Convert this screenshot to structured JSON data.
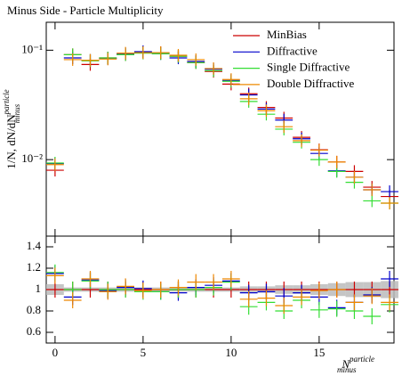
{
  "chart_data": {
    "type": "errorbar",
    "title": "Minus Side - Particle Multiplicity",
    "xlabel": {
      "text": "N",
      "sup": "particle",
      "sub": "minus"
    },
    "ylabel": {
      "text": "1/N, dN/dN",
      "sup": "particle",
      "sub": "minus"
    },
    "x": [
      0,
      1,
      2,
      3,
      4,
      5,
      6,
      7,
      8,
      9,
      10,
      11,
      12,
      13,
      14,
      15,
      16,
      17,
      18,
      19
    ],
    "xlim": [
      -0.5,
      19.25
    ],
    "xticks": [
      0,
      5,
      10,
      15
    ],
    "ylim": [
      0.002,
      0.18
    ],
    "log_y": true,
    "yticks": [
      {
        "value": 0.01,
        "label": "10⁻²"
      },
      {
        "value": 0.1,
        "label": "10⁻¹"
      }
    ],
    "legend": "top-right",
    "series": [
      {
        "name": "MinBias",
        "color": "#cc0000",
        "values": [
          0.008,
          0.091,
          0.074,
          0.085,
          0.091,
          0.096,
          0.095,
          0.088,
          0.077,
          0.064,
          0.049,
          0.04,
          0.03,
          0.024,
          0.016,
          0.0123,
          0.0095,
          0.0078,
          0.0056,
          0.0046
        ]
      },
      {
        "name": "Diffractive",
        "color": "#0000cc",
        "values": [
          0.0092,
          0.085,
          0.081,
          0.084,
          0.093,
          0.097,
          0.093,
          0.085,
          0.079,
          0.067,
          0.053,
          0.039,
          0.029,
          0.023,
          0.0155,
          0.0114,
          0.0079,
          0.0069,
          0.0053,
          0.0051
        ]
      },
      {
        "name": "Single Diffractive",
        "color": "#33dd33",
        "values": [
          0.0093,
          0.091,
          0.08,
          0.085,
          0.091,
          0.094,
          0.093,
          0.088,
          0.077,
          0.065,
          0.052,
          0.034,
          0.026,
          0.019,
          0.0144,
          0.01,
          0.0078,
          0.0062,
          0.0042,
          0.004
        ]
      },
      {
        "name": "Double Diffractive",
        "color": "#ee8800",
        "values": [
          0.009,
          0.082,
          0.081,
          0.083,
          0.094,
          0.095,
          0.095,
          0.09,
          0.082,
          0.068,
          0.054,
          0.036,
          0.028,
          0.02,
          0.0149,
          0.0122,
          0.0095,
          0.0069,
          0.0053,
          0.004
        ]
      }
    ],
    "ratio": {
      "ylim": [
        0.5,
        1.5
      ],
      "yticks": [
        0.6,
        0.8,
        1,
        1.2,
        1.4
      ],
      "band": [
        0.05,
        0.02,
        0.02,
        0.02,
        0.02,
        0.02,
        0.02,
        0.02,
        0.02,
        0.02,
        0.02,
        0.03,
        0.03,
        0.04,
        0.04,
        0.05,
        0.06,
        0.07,
        0.07,
        0.08
      ],
      "series": [
        {
          "values": [
            1,
            1,
            1,
            1,
            1,
            1,
            1,
            1,
            1,
            1,
            1,
            1,
            1,
            1,
            1,
            1,
            1,
            1,
            1,
            1
          ]
        },
        {
          "values": [
            1.15,
            0.93,
            1.09,
            0.99,
            1.02,
            1.01,
            0.98,
            0.97,
            1.02,
            1.04,
            1.08,
            0.97,
            0.98,
            0.94,
            0.97,
            0.93,
            0.83,
            0.88,
            0.95,
            1.1
          ]
        },
        {
          "values": [
            1.16,
            1.0,
            1.08,
            1.0,
            1.0,
            0.98,
            0.98,
            1.0,
            1.0,
            1.02,
            1.07,
            0.84,
            0.88,
            0.8,
            0.9,
            0.81,
            0.82,
            0.8,
            0.75,
            0.86
          ]
        },
        {
          "values": [
            1.13,
            0.9,
            1.1,
            0.98,
            1.03,
            0.99,
            1.0,
            1.02,
            1.07,
            1.07,
            1.1,
            0.91,
            0.92,
            0.85,
            0.93,
            0.99,
            1.0,
            0.88,
            0.94,
            0.88
          ]
        }
      ]
    }
  }
}
